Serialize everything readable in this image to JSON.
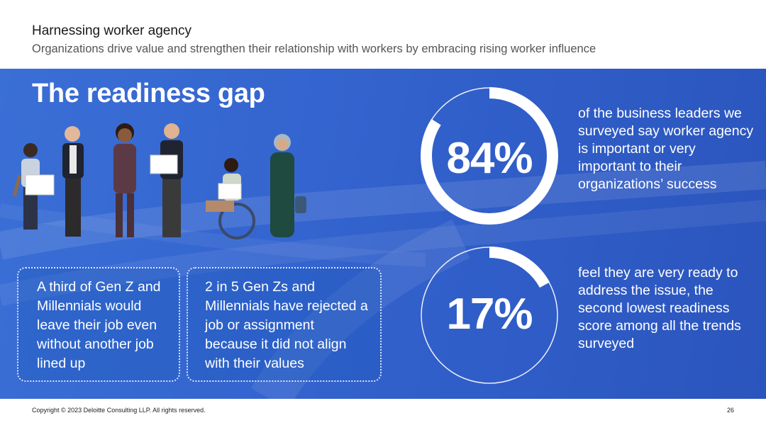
{
  "header": {
    "title": "Harnessing worker agency",
    "subtitle": "Organizations drive value and strengthen their relationship with workers by embracing rising worker influence"
  },
  "hero": {
    "headline": "The readiness gap",
    "boxes": [
      {
        "text": "A third of Gen Z and Millennials would leave their job even without another job lined up"
      },
      {
        "text": "2 in 5 Gen Zs and Millennials have rejected a job or assignment because it did not align with their values"
      }
    ],
    "stats": [
      {
        "value": "84%",
        "fraction": 0.84,
        "description": "of the business leaders we surveyed say worker agency is important or very important to their organizations’ success"
      },
      {
        "value": "17%",
        "fraction": 0.17,
        "description": "feel they are very ready to address the issue, the second lowest readiness score among all the trends surveyed"
      }
    ]
  },
  "footer": {
    "copyright": "Copyright © 2023 Deloitte Consulting LLP. All rights reserved.",
    "page_number": "26"
  },
  "colors": {
    "hero_blue": "#3464cf",
    "ring_white": "#ffffff",
    "text_dark": "#1a1a1a"
  }
}
